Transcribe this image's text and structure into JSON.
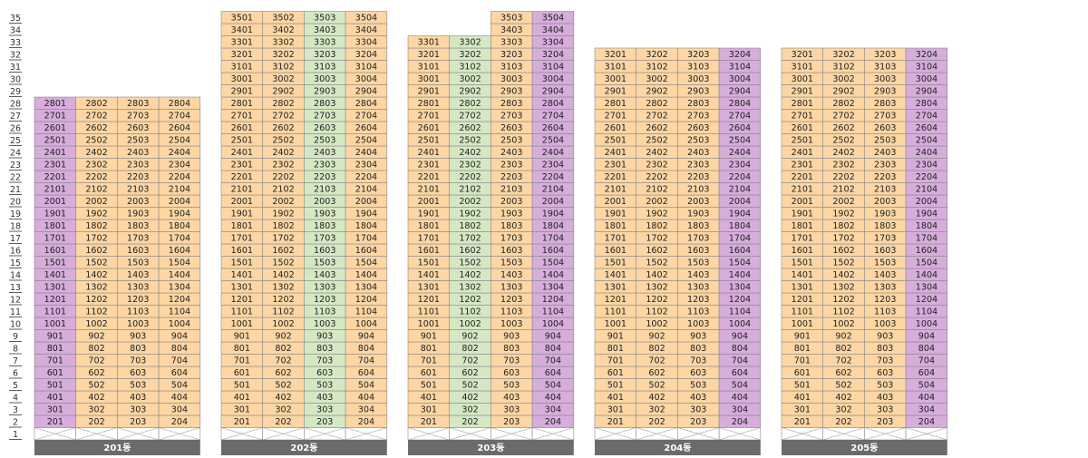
{
  "floor_labels": [
    "1",
    "2",
    "3",
    "4",
    "5",
    "6",
    "7",
    "8",
    "9",
    "10",
    "11",
    "12",
    "13",
    "14",
    "15",
    "16",
    "17",
    "18",
    "19",
    "20",
    "21",
    "22",
    "23",
    "24",
    "25",
    "26",
    "27",
    "28",
    "29",
    "30",
    "31",
    "32",
    "33",
    "34",
    "35"
  ],
  "colors": {
    "orange": "#fdd6a4",
    "green": "#d5e8c4",
    "purple": "#d7addc",
    "footer": "#6b6b6b",
    "grid": "#8a8a8a"
  },
  "buildings": [
    {
      "label": "201동",
      "columns": [
        {
          "unit": 1,
          "top_floor": 28,
          "color": "purple"
        },
        {
          "unit": 2,
          "top_floor": 28,
          "color": "orange"
        },
        {
          "unit": 3,
          "top_floor": 28,
          "color": "orange"
        },
        {
          "unit": 4,
          "top_floor": 28,
          "color": "orange"
        }
      ]
    },
    {
      "label": "202동",
      "columns": [
        {
          "unit": 1,
          "top_floor": 35,
          "color": "orange"
        },
        {
          "unit": 2,
          "top_floor": 35,
          "color": "orange"
        },
        {
          "unit": 3,
          "top_floor": 35,
          "color": "green"
        },
        {
          "unit": 4,
          "top_floor": 35,
          "color": "orange"
        }
      ]
    },
    {
      "label": "203동",
      "columns": [
        {
          "unit": 1,
          "top_floor": 33,
          "color": "orange"
        },
        {
          "unit": 2,
          "top_floor": 33,
          "color": "green"
        },
        {
          "unit": 3,
          "top_floor": 35,
          "color": "orange"
        },
        {
          "unit": 4,
          "top_floor": 35,
          "color": "purple"
        }
      ]
    },
    {
      "label": "204동",
      "columns": [
        {
          "unit": 1,
          "top_floor": 32,
          "color": "orange"
        },
        {
          "unit": 2,
          "top_floor": 32,
          "color": "orange"
        },
        {
          "unit": 3,
          "top_floor": 32,
          "color": "orange"
        },
        {
          "unit": 4,
          "top_floor": 32,
          "color": "purple"
        }
      ]
    },
    {
      "label": "205동",
      "columns": [
        {
          "unit": 1,
          "top_floor": 32,
          "color": "orange"
        },
        {
          "unit": 2,
          "top_floor": 32,
          "color": "orange"
        },
        {
          "unit": 3,
          "top_floor": 32,
          "color": "orange"
        },
        {
          "unit": 4,
          "top_floor": 32,
          "color": "purple"
        }
      ]
    }
  ]
}
